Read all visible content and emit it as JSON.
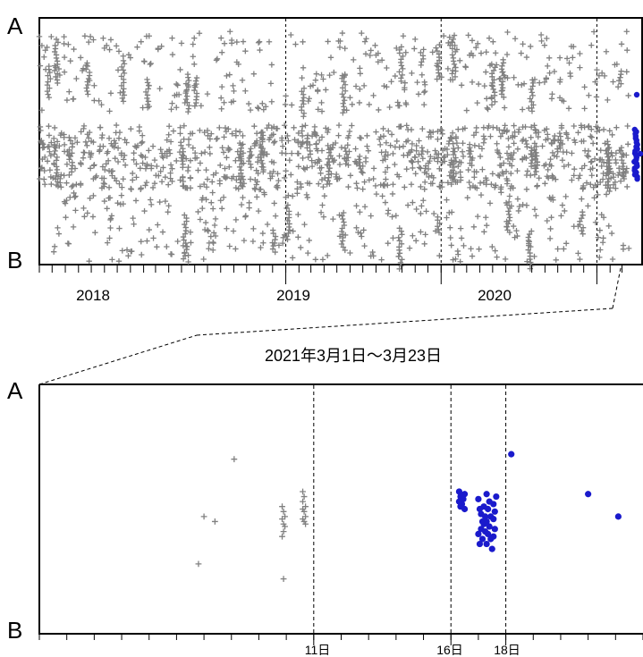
{
  "chart_data": [
    {
      "type": "scatter",
      "x_axis": "date",
      "xlim": [
        "2017-06-01",
        "2021-03-23"
      ],
      "y_axis_end_labels": {
        "top": "A",
        "bottom": "B"
      },
      "year_tick_labels": [
        "2018",
        "2019",
        "2020"
      ],
      "vertical_reference_lines": [
        "2019-01-01",
        "2020-01-01",
        "2021-01-01"
      ],
      "grid": false,
      "series": [
        {
          "marker": "plus",
          "color": "#808080",
          "period": [
            "2017-06-01",
            "2021-03-18"
          ],
          "bands": [
            "upper",
            "middle",
            "lower"
          ]
        },
        {
          "marker": "dot",
          "color": "#1a1acc",
          "period": [
            "2021-03-16",
            "2021-03-23"
          ],
          "bands": [
            "middle"
          ]
        }
      ]
    },
    {
      "type": "scatter",
      "title": "2021年3月1日～3月23日",
      "x_axis": "day of March 2021",
      "xlim": [
        1,
        23
      ],
      "y_axis_end_labels": {
        "top": "A",
        "bottom": "B"
      },
      "tick_labels": [
        "11日",
        "16日",
        "18日"
      ],
      "vertical_reference_lines": [
        11,
        16,
        18
      ],
      "grid": false,
      "series": [
        {
          "marker": "plus",
          "color": "#808080",
          "points": [
            {
              "day": 7.0,
              "level": 0.47
            },
            {
              "day": 7.4,
              "level": 0.45
            },
            {
              "day": 6.8,
              "level": 0.28
            },
            {
              "day": 8.1,
              "level": 0.7
            },
            {
              "day": 9.9,
              "level": 0.22
            },
            {
              "day": 9.85,
              "level": 0.51
            },
            {
              "day": 9.9,
              "level": 0.49
            },
            {
              "day": 9.95,
              "level": 0.47
            },
            {
              "day": 9.85,
              "level": 0.46
            },
            {
              "day": 9.9,
              "level": 0.44
            },
            {
              "day": 9.95,
              "level": 0.43
            },
            {
              "day": 9.9,
              "level": 0.41
            },
            {
              "day": 9.85,
              "level": 0.39
            },
            {
              "day": 10.6,
              "level": 0.57
            },
            {
              "day": 10.65,
              "level": 0.55
            },
            {
              "day": 10.6,
              "level": 0.53
            },
            {
              "day": 10.7,
              "level": 0.51
            },
            {
              "day": 10.6,
              "level": 0.5
            },
            {
              "day": 10.65,
              "level": 0.49
            },
            {
              "day": 10.7,
              "level": 0.47
            },
            {
              "day": 10.6,
              "level": 0.46
            },
            {
              "day": 10.65,
              "level": 0.45
            },
            {
              "day": 10.7,
              "level": 0.44
            }
          ]
        },
        {
          "marker": "dot",
          "color": "#1a1acc",
          "points": [
            {
              "day": 16.3,
              "level": 0.57
            },
            {
              "day": 16.35,
              "level": 0.55
            },
            {
              "day": 16.3,
              "level": 0.53
            },
            {
              "day": 16.4,
              "level": 0.52
            },
            {
              "day": 16.5,
              "level": 0.56
            },
            {
              "day": 16.45,
              "level": 0.54
            },
            {
              "day": 16.35,
              "level": 0.51
            },
            {
              "day": 16.5,
              "level": 0.5
            },
            {
              "day": 17.0,
              "level": 0.54
            },
            {
              "day": 17.05,
              "level": 0.5
            },
            {
              "day": 17.1,
              "level": 0.48
            },
            {
              "day": 17.2,
              "level": 0.44
            },
            {
              "day": 17.1,
              "level": 0.42
            },
            {
              "day": 17.0,
              "level": 0.4
            },
            {
              "day": 17.15,
              "level": 0.38
            },
            {
              "day": 17.05,
              "level": 0.36
            },
            {
              "day": 17.3,
              "level": 0.56
            },
            {
              "day": 17.4,
              "level": 0.53
            },
            {
              "day": 17.35,
              "level": 0.5
            },
            {
              "day": 17.45,
              "level": 0.47
            },
            {
              "day": 17.3,
              "level": 0.45
            },
            {
              "day": 17.4,
              "level": 0.43
            },
            {
              "day": 17.35,
              "level": 0.4
            },
            {
              "day": 17.45,
              "level": 0.38
            },
            {
              "day": 17.3,
              "level": 0.36
            },
            {
              "day": 17.5,
              "level": 0.34
            },
            {
              "day": 17.55,
              "level": 0.52
            },
            {
              "day": 17.6,
              "level": 0.49
            },
            {
              "day": 17.55,
              "level": 0.46
            },
            {
              "day": 17.6,
              "level": 0.42
            },
            {
              "day": 17.55,
              "level": 0.39
            },
            {
              "day": 17.65,
              "level": 0.55
            },
            {
              "day": 17.2,
              "level": 0.51
            },
            {
              "day": 17.25,
              "level": 0.47
            },
            {
              "day": 17.15,
              "level": 0.45
            },
            {
              "day": 17.25,
              "level": 0.41
            },
            {
              "day": 18.2,
              "level": 0.72
            },
            {
              "day": 21.0,
              "level": 0.56
            },
            {
              "day": 22.1,
              "level": 0.47
            }
          ]
        }
      ]
    }
  ],
  "colors": {
    "grey_marker": "#808080",
    "blue_marker": "#1a1acc",
    "axis": "#000000"
  }
}
